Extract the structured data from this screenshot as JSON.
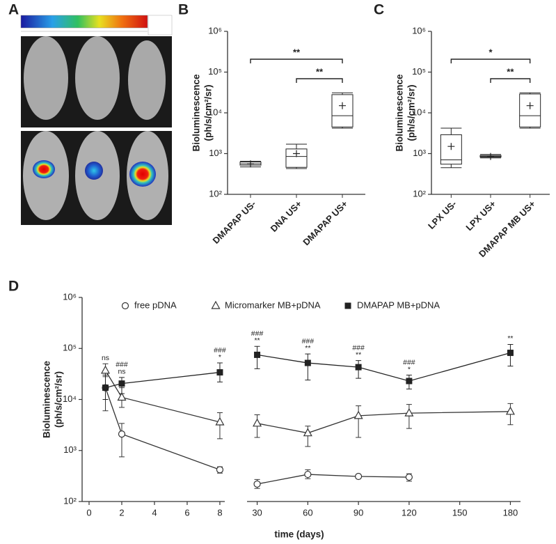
{
  "chart_data": [
    {
      "type": "image",
      "label": "A"
    },
    {
      "type": "box",
      "label": "B",
      "log": true,
      "ylabel": [
        "Bioluminescence",
        "(ph/s/cm²/sr)"
      ],
      "categories": [
        "DMAPAP US-",
        "DNA US+",
        "DMAPAP US+"
      ],
      "color": "#222222",
      "boxes": [
        {
          "min": 470,
          "q1": 520,
          "median": 560,
          "q3": 620,
          "max": 650,
          "mean": 560
        },
        {
          "min": 430,
          "q1": 460,
          "median": 850,
          "q3": 1300,
          "max": 1700,
          "mean": 1000
        },
        {
          "min": 4200,
          "q1": 4500,
          "median": 8500,
          "q3": 28000,
          "max": 31000,
          "mean": 15000
        }
      ],
      "comparisons": [
        {
          "from": 0,
          "to": 2,
          "label": "**"
        },
        {
          "from": 1,
          "to": 2,
          "label": "**"
        }
      ],
      "ylim": [
        100,
        1000000
      ],
      "yticks": [
        {
          "value": 100,
          "label": "10²"
        },
        {
          "value": 1000,
          "label": "10³"
        },
        {
          "value": 10000,
          "label": "10⁴"
        },
        {
          "value": 100000,
          "label": "10⁵"
        },
        {
          "value": 1000000,
          "label": "10⁶"
        }
      ]
    },
    {
      "type": "box",
      "label": "C",
      "log": true,
      "ylabel": [
        "Bioluminescence",
        "(ph/s/cm²/sr)"
      ],
      "categories": [
        "LPX US-",
        "LPX US+",
        "DMAPAP MB US+"
      ],
      "color": "#222222",
      "boxes": [
        {
          "min": 450,
          "q1": 550,
          "median": 700,
          "q3": 2900,
          "max": 4200,
          "mean": 1500
        },
        {
          "min": 780,
          "q1": 820,
          "median": 860,
          "q3": 900,
          "max": 950,
          "mean": 850
        },
        {
          "min": 4200,
          "q1": 4500,
          "median": 8500,
          "q3": 29000,
          "max": 31000,
          "mean": 15000
        }
      ],
      "comparisons": [
        {
          "from": 0,
          "to": 2,
          "label": "*"
        },
        {
          "from": 1,
          "to": 2,
          "label": "**"
        }
      ],
      "ylim": [
        100,
        1000000
      ],
      "yticks": [
        {
          "value": 100,
          "label": "10²"
        },
        {
          "value": 1000,
          "label": "10³"
        },
        {
          "value": 10000,
          "label": "10⁴"
        },
        {
          "value": 100000,
          "label": "10⁵"
        },
        {
          "value": 1000000,
          "label": "10⁶"
        }
      ]
    },
    {
      "type": "line",
      "label": "D",
      "log": true,
      "ylabel": [
        "Bioluminescence",
        "(ph/s/cm²/sr)"
      ],
      "xlabel": "time (days)",
      "x": [
        1,
        2,
        8,
        30,
        60,
        90,
        120,
        180
      ],
      "segments": [
        {
          "xlim": [
            0,
            8.3
          ],
          "xticks": [
            0,
            2,
            4,
            6,
            8
          ]
        },
        {
          "xlim": [
            24,
            186
          ],
          "xticks": [
            30,
            60,
            90,
            120,
            150,
            180
          ]
        }
      ],
      "series": [
        {
          "name": "free pDNA",
          "marker": "circle",
          "color": "#333333",
          "values": [
            17000,
            2100,
            420,
            220,
            340,
            310,
            300,
            null
          ],
          "lower": [
            6000,
            750,
            360,
            180,
            280,
            300,
            250,
            null
          ],
          "upper": [
            28000,
            3400,
            480,
            270,
            420,
            320,
            350,
            null
          ]
        },
        {
          "name": "Micromarker MB+pDNA",
          "marker": "triangle",
          "color": "#333333",
          "values": [
            37000,
            11000,
            3600,
            3400,
            2200,
            4800,
            5400,
            5800
          ],
          "lower": [
            17000,
            7000,
            1700,
            1800,
            1200,
            1800,
            2700,
            3200
          ],
          "upper": [
            50000,
            17000,
            5500,
            5000,
            3000,
            7500,
            8000,
            8300
          ]
        },
        {
          "name": "DMAPAP MB+pDNA",
          "marker": "square",
          "color": "#222222",
          "values": [
            17000,
            20500,
            34000,
            75000,
            52000,
            43000,
            23000,
            82000
          ],
          "lower": [
            10000,
            13000,
            22000,
            40000,
            24000,
            26000,
            16000,
            45000
          ],
          "upper": [
            30000,
            27000,
            52000,
            110000,
            78000,
            58000,
            30000,
            120000
          ]
        }
      ],
      "annotations": [
        {
          "x": 1,
          "lines": [
            "ns"
          ]
        },
        {
          "x": 2,
          "lines": [
            "###",
            "ns"
          ]
        },
        {
          "x": 8,
          "lines": [
            "###",
            "*"
          ]
        },
        {
          "x": 30,
          "lines": [
            "###",
            "**"
          ]
        },
        {
          "x": 60,
          "lines": [
            "###",
            "**"
          ]
        },
        {
          "x": 90,
          "lines": [
            "###",
            "**"
          ]
        },
        {
          "x": 120,
          "lines": [
            "###",
            "*"
          ]
        },
        {
          "x": 180,
          "lines": [
            "**"
          ]
        }
      ],
      "ylim": [
        100,
        1000000
      ],
      "yticks": [
        {
          "value": 100,
          "label": "10²"
        },
        {
          "value": 1000,
          "label": "10³"
        },
        {
          "value": 10000,
          "label": "10⁴"
        },
        {
          "value": 100000,
          "label": "10⁵"
        },
        {
          "value": 1000000,
          "label": "10⁶"
        }
      ]
    }
  ]
}
